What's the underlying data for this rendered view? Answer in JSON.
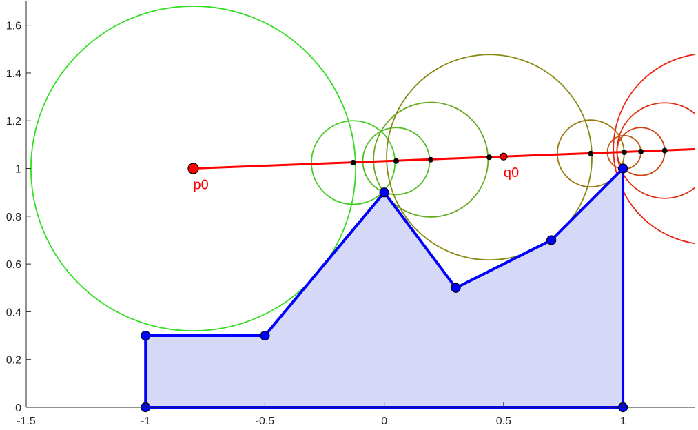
{
  "chart_data": {
    "type": "scatter",
    "title": "",
    "xlabel": "",
    "ylabel": "",
    "xlim": [
      -1.5,
      1.3
    ],
    "ylim": [
      0,
      1.7
    ],
    "grid": false,
    "x_ticks": [
      -1.5,
      -1,
      -0.5,
      0,
      0.5,
      1
    ],
    "x_tick_labels": [
      "-1.5",
      "-1",
      "-0.5",
      "0",
      "0.5",
      "1"
    ],
    "y_ticks": [
      0,
      0.2,
      0.4,
      0.6,
      0.8,
      1,
      1.2,
      1.4,
      1.6
    ],
    "y_tick_labels": [
      "0",
      "0.2",
      "0.4",
      "0.6",
      "0.8",
      "1",
      "1.2",
      "1.4",
      "1.6"
    ],
    "polygon": {
      "vertices": [
        [
          -1,
          0
        ],
        [
          -1,
          0.3
        ],
        [
          -0.5,
          0.3
        ],
        [
          0,
          0.9
        ],
        [
          0.3,
          0.5
        ],
        [
          0.7,
          0.7
        ],
        [
          1,
          1
        ],
        [
          1,
          0
        ]
      ],
      "fill_color": "#d6d8f7",
      "edge_color": "#0000ff",
      "vertex_color": "#0000ff"
    },
    "ray": {
      "start": [
        -0.8,
        1.0
      ],
      "direction_point": [
        0.5,
        1.05
      ],
      "end_x": 1.3,
      "color": "#ff0000"
    },
    "points": [
      {
        "label": "p0",
        "x": -0.8,
        "y": 1.0,
        "color": "#ff0000"
      },
      {
        "label": "q0",
        "x": 0.5,
        "y": 1.05,
        "color": "#ff0000"
      }
    ],
    "circles": [
      {
        "cx": -0.8,
        "cy": 1.0,
        "r": 0.68,
        "color": "#33dd22"
      },
      {
        "cx": -0.13,
        "cy": 1.025,
        "r": 0.175,
        "color": "#44cc22"
      },
      {
        "cx": 0.05,
        "cy": 1.031,
        "r": 0.14,
        "color": "#55bb22"
      },
      {
        "cx": 0.195,
        "cy": 1.037,
        "r": 0.24,
        "color": "#66aa22"
      },
      {
        "cx": 0.44,
        "cy": 1.047,
        "r": 0.43,
        "color": "#888811"
      },
      {
        "cx": 0.865,
        "cy": 1.063,
        "r": 0.14,
        "color": "#997711"
      },
      {
        "cx": 1.005,
        "cy": 1.068,
        "r": 0.07,
        "color": "#bb5511"
      },
      {
        "cx": 1.075,
        "cy": 1.071,
        "r": 0.1,
        "color": "#cc4411"
      },
      {
        "cx": 1.175,
        "cy": 1.075,
        "r": 0.2,
        "color": "#dd3311"
      },
      {
        "cx": 1.36,
        "cy": 1.082,
        "r": 0.4,
        "color": "#ee2211"
      }
    ],
    "intersection_points": [
      [
        -0.13,
        1.025
      ],
      [
        0.05,
        1.031
      ],
      [
        0.195,
        1.037
      ],
      [
        0.44,
        1.047
      ],
      [
        0.865,
        1.063
      ],
      [
        1.005,
        1.068
      ],
      [
        1.075,
        1.071
      ],
      [
        1.175,
        1.075
      ]
    ]
  }
}
